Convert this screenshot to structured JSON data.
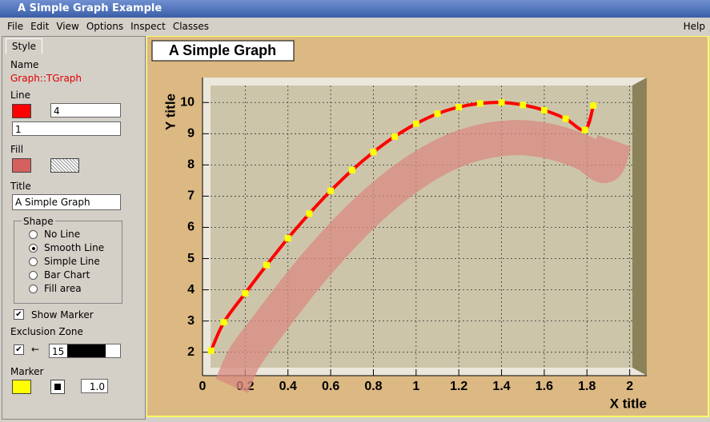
{
  "window": {
    "title": "A Simple Graph Example",
    "menu": [
      "File",
      "Edit",
      "View",
      "Options",
      "Inspect",
      "Classes"
    ],
    "help": "Help"
  },
  "editor": {
    "tab": "Style",
    "name_label": "Name",
    "name": "Graph::TGraph",
    "line_label": "Line",
    "line_width": "4",
    "line_style": "1",
    "fill_label": "Fill",
    "title_label": "Title",
    "shape_label": "Shape",
    "shapes": [
      "No Line",
      "Smooth Line",
      "Simple Line",
      "Bar Chart",
      "Fill area"
    ],
    "show_marker": "Show Marker",
    "exclusion_label": "Exclusion Zone",
    "exclusion_arrow": "←",
    "exclusion_width": "15",
    "marker_label": "Marker",
    "marker_size": "1.0"
  },
  "chart_data": {
    "type": "line",
    "title": "A Simple Graph",
    "x_label": "X title",
    "y_label": "Y title",
    "x": [
      0.04,
      0.1,
      0.2,
      0.3,
      0.4,
      0.5,
      0.6,
      0.7,
      0.8,
      0.9,
      1.0,
      1.1,
      1.2,
      1.3,
      1.4,
      1.5,
      1.6,
      1.7,
      1.79,
      1.83
    ],
    "series": [
      {
        "color": "#ff0000",
        "marker_color": "#ffff00",
        "fill_color": "#d88a80",
        "values": [
          2.05,
          2.96,
          3.89,
          4.79,
          5.65,
          6.44,
          7.17,
          7.83,
          8.41,
          8.91,
          9.32,
          9.64,
          9.85,
          9.97,
          10.0,
          9.92,
          9.75,
          9.48,
          9.12,
          9.9
        ]
      }
    ],
    "xlim": [
      0,
      2.08
    ],
    "ylim": [
      1.25,
      10.8
    ],
    "xticks": [
      0,
      0.2,
      0.4,
      0.6,
      0.8,
      1,
      1.2,
      1.4,
      1.6,
      1.8,
      2
    ],
    "yticks": [
      2,
      3,
      4,
      5,
      6,
      7,
      8,
      9,
      10
    ],
    "grid": true
  }
}
